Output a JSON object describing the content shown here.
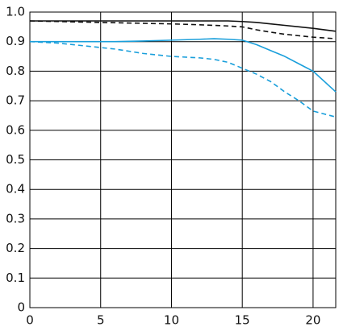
{
  "chart_data": {
    "type": "line",
    "x": [
      0,
      2,
      4,
      6,
      8,
      10,
      12,
      13,
      14,
      15,
      16,
      17,
      18,
      19,
      20,
      21.6
    ],
    "series": [
      {
        "color": "#111111",
        "dashed": false,
        "values": [
          0.97,
          0.97,
          0.97,
          0.97,
          0.97,
          0.97,
          0.97,
          0.97,
          0.97,
          0.968,
          0.965,
          0.96,
          0.955,
          0.95,
          0.945,
          0.935
        ]
      },
      {
        "color": "#111111",
        "dashed": true,
        "values": [
          0.97,
          0.968,
          0.966,
          0.964,
          0.962,
          0.96,
          0.957,
          0.955,
          0.953,
          0.95,
          0.94,
          0.932,
          0.925,
          0.92,
          0.915,
          0.91
        ]
      },
      {
        "color": "#1a9fdb",
        "dashed": false,
        "values": [
          0.9,
          0.9,
          0.9,
          0.9,
          0.902,
          0.905,
          0.908,
          0.91,
          0.908,
          0.905,
          0.89,
          0.87,
          0.85,
          0.825,
          0.8,
          0.73
        ]
      },
      {
        "color": "#1a9fdb",
        "dashed": true,
        "values": [
          0.9,
          0.895,
          0.885,
          0.875,
          0.86,
          0.85,
          0.845,
          0.84,
          0.83,
          0.81,
          0.79,
          0.765,
          0.73,
          0.7,
          0.665,
          0.645
        ]
      }
    ],
    "xlim": [
      0,
      21.6
    ],
    "xticks": [
      0,
      5,
      10,
      15,
      20
    ],
    "ylim": [
      0,
      1
    ],
    "yticks": [
      0,
      0.1,
      0.2,
      0.3,
      0.4,
      0.5,
      0.6,
      0.7,
      0.8,
      0.9,
      {
        "value": 1,
        "label": "1.0"
      }
    ],
    "grid": true
  }
}
